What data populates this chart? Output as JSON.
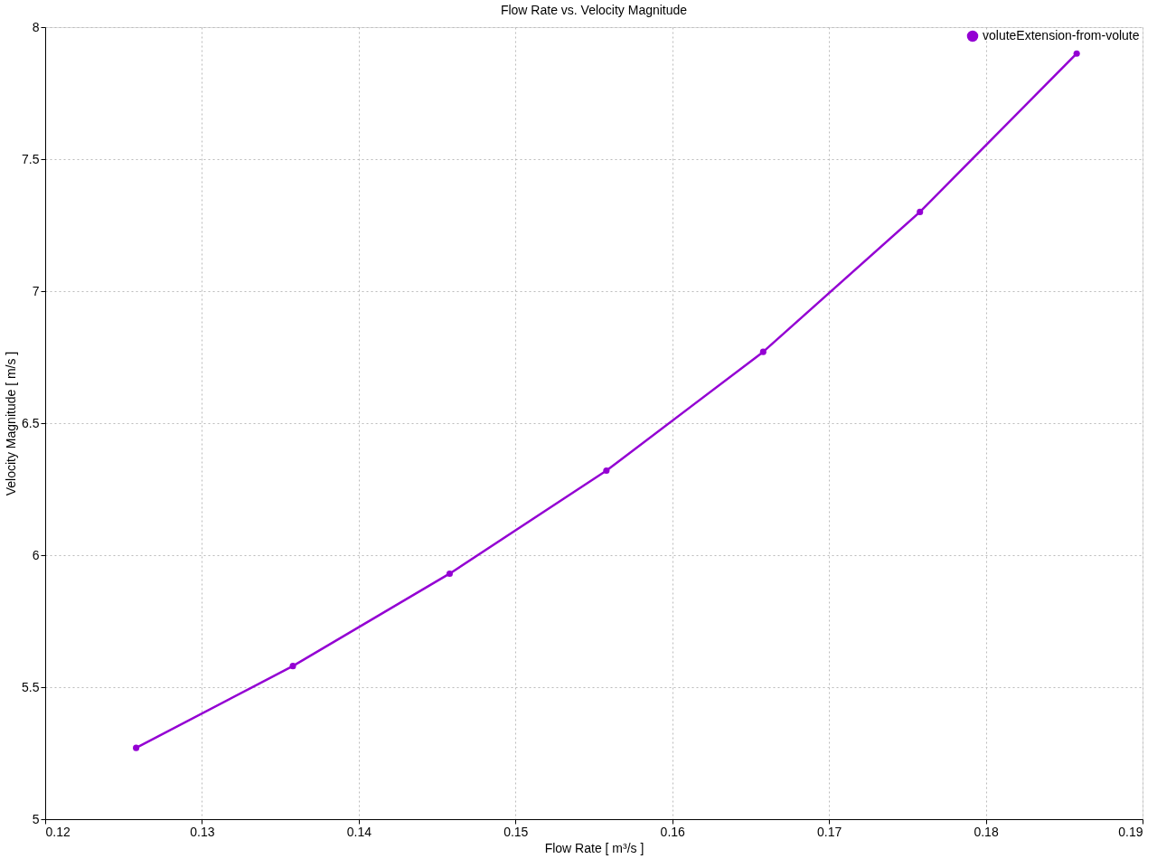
{
  "chart_data": {
    "type": "line",
    "title": "Flow Rate vs. Velocity Magnitude",
    "xlabel": "Flow Rate [ m³/s ]",
    "ylabel": "Velocity Magnitude [ m/s ]",
    "x": [
      0.1258,
      0.1358,
      0.1458,
      0.1558,
      0.1658,
      0.1758,
      0.1858
    ],
    "series": [
      {
        "name": "voluteExtension-from-volute",
        "color": "#9400d3",
        "values": [
          5.27,
          5.58,
          5.93,
          6.32,
          6.77,
          7.3,
          7.9
        ]
      }
    ],
    "xlim": [
      0.12,
      0.19
    ],
    "xticks": [
      0.12,
      0.13,
      0.14,
      0.15,
      0.16,
      0.17,
      0.18,
      0.19
    ],
    "ylim": [
      5,
      8
    ],
    "yticks": [
      5,
      5.5,
      6,
      6.5,
      7,
      7.5,
      8
    ],
    "grid": true,
    "legend": "top right",
    "marker": "circle",
    "line_style": "solid"
  }
}
